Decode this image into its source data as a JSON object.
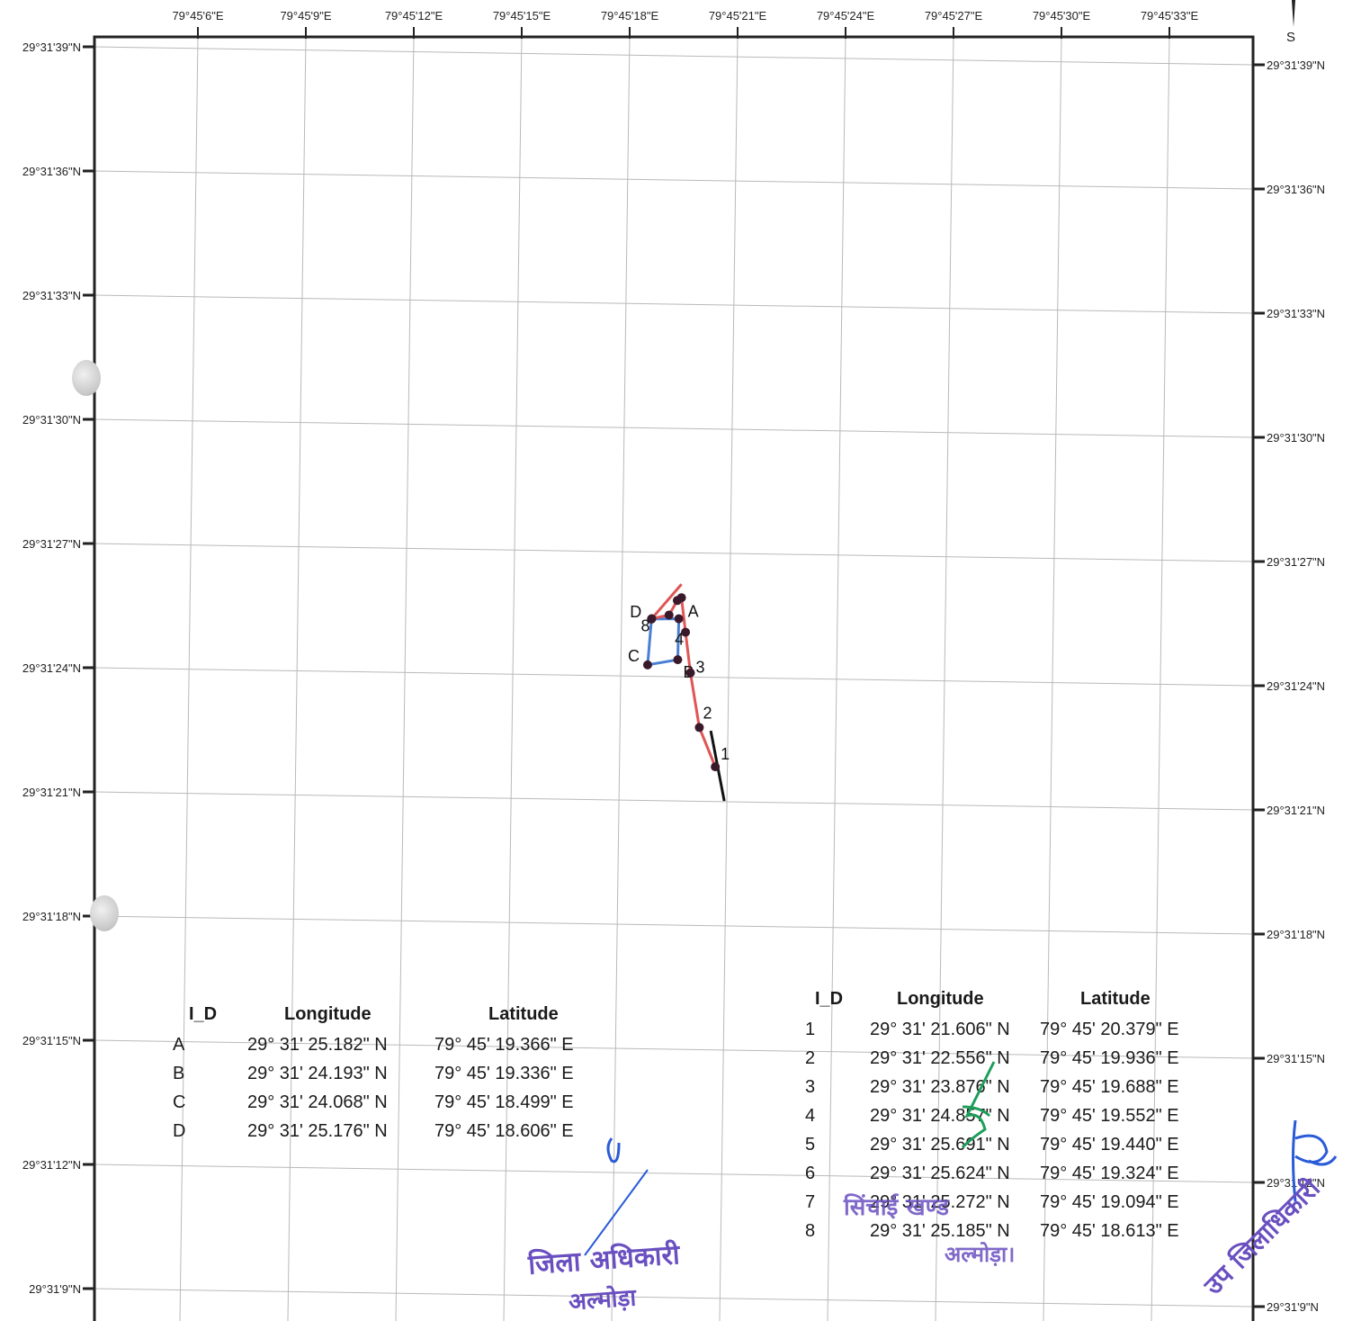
{
  "map": {
    "lon_ticks": [
      "79°45'6\"E",
      "79°45'9\"E",
      "79°45'12\"E",
      "79°45'15\"E",
      "79°45'18\"E",
      "79°45'21\"E",
      "79°45'24\"E",
      "79°45'27\"E",
      "79°45'30\"E",
      "79°45'33\"E"
    ],
    "lat_ticks": [
      "29°31'39\"N",
      "29°31'36\"N",
      "29°31'33\"N",
      "29°31'30\"N",
      "29°31'27\"N",
      "29°31'24\"N",
      "29°31'21\"N",
      "29°31'18\"N",
      "29°31'15\"N",
      "29°31'12\"N",
      "29°31'9\"N"
    ],
    "compass_label": "S",
    "colors": {
      "frame": "#222222",
      "grid": "#b9b9b9",
      "boundary": "#4a7fd4",
      "route": "#e05555",
      "road": "#111111",
      "point": "#3a1a2a"
    },
    "parcel_points": [
      {
        "id": "A",
        "lat_sec": 25.182,
        "lon_sec": 19.366
      },
      {
        "id": "B",
        "lat_sec": 24.193,
        "lon_sec": 19.336
      },
      {
        "id": "C",
        "lat_sec": 24.068,
        "lon_sec": 18.499
      },
      {
        "id": "D",
        "lat_sec": 25.176,
        "lon_sec": 18.606
      }
    ],
    "route_points": [
      {
        "id": "1",
        "lat_sec": 21.606,
        "lon_sec": 20.379
      },
      {
        "id": "2",
        "lat_sec": 22.556,
        "lon_sec": 19.936
      },
      {
        "id": "3",
        "lat_sec": 23.876,
        "lon_sec": 19.688
      },
      {
        "id": "4",
        "lat_sec": 24.857,
        "lon_sec": 19.552
      },
      {
        "id": "5",
        "lat_sec": 25.691,
        "lon_sec": 19.44
      },
      {
        "id": "6",
        "lat_sec": 25.624,
        "lon_sec": 19.324
      },
      {
        "id": "7",
        "lat_sec": 25.272,
        "lon_sec": 19.094
      },
      {
        "id": "8",
        "lat_sec": 25.185,
        "lon_sec": 18.613
      }
    ]
  },
  "table_abcd": {
    "headers": [
      "I_D",
      "Longitude",
      "Latitude"
    ],
    "rows": [
      [
        "A",
        "29° 31' 25.182\" N",
        "79° 45' 19.366\" E"
      ],
      [
        "B",
        "29° 31' 24.193\" N",
        "79° 45' 19.336\" E"
      ],
      [
        "C",
        "29° 31' 24.068\" N",
        "79° 45' 18.499\" E"
      ],
      [
        "D",
        "29° 31' 25.176\" N",
        "79° 45' 18.606\" E"
      ]
    ]
  },
  "table_numbered": {
    "headers": [
      "I_D",
      "Longitude",
      "Latitude"
    ],
    "rows": [
      [
        "1",
        "29° 31' 21.606\" N",
        "79° 45' 20.379\" E"
      ],
      [
        "2",
        "29° 31' 22.556\" N",
        "79° 45' 19.936\" E"
      ],
      [
        "3",
        "29° 31' 23.876\" N",
        "79° 45' 19.688\" E"
      ],
      [
        "4",
        "29° 31' 24.857\" N",
        "79° 45' 19.552\" E"
      ],
      [
        "5",
        "29° 31' 25.691\" N",
        "79° 45' 19.440\" E"
      ],
      [
        "6",
        "29° 31' 25.624\" N",
        "79° 45' 19.324\" E"
      ],
      [
        "7",
        "29° 31' 25.272\" N",
        "79° 45' 19.094\" E"
      ],
      [
        "8",
        "29° 31' 25.185\" N",
        "79° 45' 18.613\" E"
      ]
    ]
  },
  "stamps": {
    "collector_line1": "जिला अधिकारी",
    "collector_line2": "अल्मोड़ा",
    "irrigation_line1": "सिंचाई खण्ड",
    "irrigation_line2": "अल्मोड़ा।",
    "sub_collector": "उप जिलाधिकारी"
  }
}
